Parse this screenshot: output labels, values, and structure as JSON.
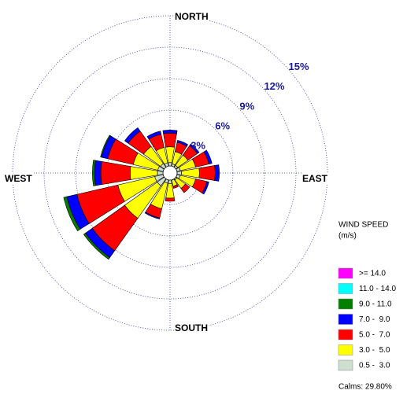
{
  "chart_data": {
    "type": "windrose",
    "directions": [
      "N",
      "NNE",
      "NE",
      "ENE",
      "E",
      "ESE",
      "SE",
      "SSE",
      "S",
      "SSW",
      "SW",
      "WSW",
      "W",
      "WNW",
      "NW",
      "NNW"
    ],
    "compass_labels": {
      "north": "NORTH",
      "east": "EAST",
      "south": "SOUTH",
      "west": "WEST"
    },
    "rlim": [
      0,
      15
    ],
    "rticks": [
      {
        "value": 3,
        "label": "3%"
      },
      {
        "value": 6,
        "label": "6%"
      },
      {
        "value": 9,
        "label": "9%"
      },
      {
        "value": 12,
        "label": "12%"
      },
      {
        "value": 15,
        "label": "15%"
      }
    ],
    "legend_title": "WIND SPEED",
    "legend_unit": "(m/s)",
    "calms_label": "Calms: 29.80%",
    "series": [
      {
        "name": "0.5 -  3.0",
        "color": "#cfdfcf",
        "values": [
          1.0,
          0.9,
          0.9,
          1.0,
          1.1,
          1.0,
          0.8,
          0.7,
          1.0,
          1.0,
          1.5,
          1.5,
          1.2,
          1.2,
          1.1,
          1.0
        ]
      },
      {
        "name": "3.0 -  5.0",
        "color": "#ffff00",
        "values": [
          1.5,
          1.2,
          1.2,
          1.5,
          1.7,
          1.5,
          1.0,
          0.6,
          1.4,
          2.5,
          3.8,
          3.6,
          2.6,
          2.4,
          2.0,
          1.5
        ]
      },
      {
        "name": "5.0 -  7.0",
        "color": "#ff0000",
        "values": [
          1.3,
          0.9,
          1.1,
          1.3,
          1.5,
          1.1,
          0.5,
          0.2,
          0.3,
          0.9,
          3.8,
          4.0,
          2.8,
          2.5,
          1.8,
          1.3
        ]
      },
      {
        "name": "7.0 -  9.0",
        "color": "#0000ff",
        "values": [
          0.3,
          0.2,
          0.2,
          0.3,
          0.4,
          0.2,
          0,
          0,
          0,
          0.1,
          0.8,
          1.0,
          0.6,
          0.6,
          0.4,
          0.3
        ]
      },
      {
        "name": "9.0 - 11.0",
        "color": "#008000",
        "values": [
          0,
          0,
          0,
          0,
          0,
          0,
          0,
          0,
          0,
          0,
          0.2,
          0.3,
          0.2,
          0.1,
          0,
          0
        ]
      },
      {
        "name": "11.0 - 14.0",
        "color": "#00ffff",
        "values": [
          0,
          0,
          0,
          0,
          0,
          0,
          0,
          0,
          0,
          0,
          0,
          0,
          0,
          0,
          0,
          0
        ]
      },
      {
        "name": ">= 14.0",
        "color": "#ff00ff",
        "values": [
          0,
          0,
          0,
          0,
          0,
          0,
          0,
          0,
          0,
          0,
          0,
          0,
          0,
          0,
          0,
          0
        ]
      }
    ]
  }
}
